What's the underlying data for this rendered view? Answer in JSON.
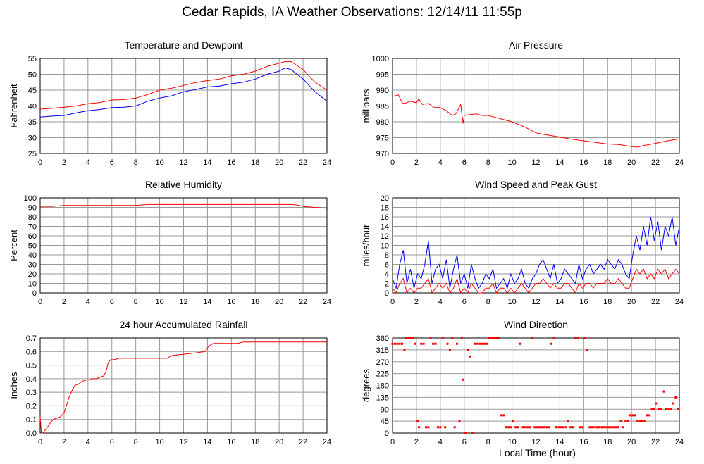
{
  "title": "Cedar Rapids, IA Weather Observations: 12/14/11 11:55p",
  "xlabel": "Local Time (hour)",
  "colors": {
    "red": "#ff0000",
    "blue": "#0000ff",
    "grid": "#999999",
    "frame": "#000000"
  },
  "chart_data": [
    {
      "id": "temp",
      "type": "line",
      "title": "Temperature and Dewpoint",
      "ylabel": "Fahrenheit",
      "xlim": [
        0,
        24
      ],
      "ylim": [
        25,
        55
      ],
      "xticks": [
        0,
        2,
        4,
        6,
        8,
        10,
        12,
        14,
        16,
        18,
        20,
        22,
        24
      ],
      "yticks": [
        25,
        30,
        35,
        40,
        45,
        50,
        55
      ],
      "series": [
        {
          "color": "#ff0000",
          "x": [
            0,
            1,
            2,
            3,
            4,
            5,
            6,
            7,
            8,
            9,
            10,
            11,
            12,
            13,
            14,
            15,
            16,
            17,
            18,
            19,
            20,
            20.5,
            21,
            22,
            23,
            24
          ],
          "values": [
            39,
            39.3,
            39.6,
            40,
            40.7,
            41.1,
            41.9,
            42,
            42.5,
            43.6,
            45,
            45.6,
            46.5,
            47.4,
            48,
            48.5,
            49.5,
            50,
            51,
            52.5,
            53.5,
            54,
            54,
            51.5,
            47.5,
            45
          ]
        },
        {
          "color": "#0000ff",
          "x": [
            0,
            1,
            2,
            3,
            4,
            5,
            6,
            7,
            8,
            9,
            10,
            11,
            12,
            13,
            14,
            15,
            16,
            17,
            18,
            19,
            20,
            20.5,
            21,
            22,
            23,
            24
          ],
          "values": [
            36.5,
            36.8,
            37,
            37.8,
            38.5,
            38.9,
            39.5,
            39.6,
            40,
            41.5,
            42.5,
            43.2,
            44.5,
            45.2,
            46,
            46.3,
            47,
            47.5,
            48.5,
            50,
            51,
            52,
            51.5,
            48.5,
            44.5,
            41.5
          ]
        }
      ]
    },
    {
      "id": "pressure",
      "type": "line",
      "title": "Air Pressure",
      "ylabel": "millibars",
      "xlim": [
        0,
        24
      ],
      "ylim": [
        970,
        1000
      ],
      "xticks": [
        0,
        2,
        4,
        6,
        8,
        10,
        12,
        14,
        16,
        18,
        20,
        22,
        24
      ],
      "yticks": [
        970,
        975,
        980,
        985,
        990,
        995,
        1000
      ],
      "series": [
        {
          "color": "#ff0000",
          "x": [
            0,
            0.5,
            0.8,
            1,
            1.5,
            2,
            2.2,
            2.5,
            3,
            3.5,
            4,
            4.5,
            5,
            5.3,
            5.7,
            5.9,
            6,
            6.5,
            7,
            7.5,
            8,
            8.5,
            9,
            10,
            11,
            12,
            13,
            14,
            15,
            16,
            17,
            18,
            19,
            20,
            20.5,
            21,
            22,
            23,
            24
          ],
          "values": [
            988,
            988.5,
            986,
            985.8,
            986.5,
            986,
            987.2,
            985.5,
            985.8,
            984.5,
            984.5,
            983.5,
            982,
            982.5,
            985.5,
            979.5,
            982,
            982.3,
            982.5,
            982,
            982,
            981.5,
            981,
            980,
            978.5,
            976.5,
            975.8,
            975.2,
            974.5,
            974,
            973.5,
            973,
            972.8,
            972.2,
            972,
            972.5,
            973.2,
            974,
            974.6
          ]
        }
      ]
    },
    {
      "id": "humidity",
      "type": "line",
      "title": "Relative Humidity",
      "ylabel": "Percent",
      "xlim": [
        0,
        24
      ],
      "ylim": [
        0,
        100
      ],
      "xticks": [
        0,
        2,
        4,
        6,
        8,
        10,
        12,
        14,
        16,
        18,
        20,
        22,
        24
      ],
      "yticks": [
        0,
        10,
        20,
        30,
        40,
        50,
        60,
        70,
        80,
        90,
        100
      ],
      "series": [
        {
          "color": "#ff0000",
          "x": [
            0,
            1,
            2,
            3,
            4,
            5,
            6,
            7,
            8,
            9,
            10,
            11,
            12,
            13,
            14,
            15,
            16,
            17,
            18,
            19,
            20,
            21,
            21.5,
            22,
            23,
            24
          ],
          "values": [
            91,
            91,
            92,
            92,
            92,
            92,
            92,
            92,
            92,
            93,
            93,
            93,
            93,
            93,
            93,
            93,
            93,
            93,
            93,
            93,
            93,
            93,
            92.5,
            91,
            90,
            89
          ]
        }
      ]
    },
    {
      "id": "wind",
      "type": "line",
      "title": "Wind Speed and Peak Gust",
      "ylabel": "miles/hour",
      "xlim": [
        0,
        24
      ],
      "ylim": [
        0,
        20
      ],
      "xticks": [
        0,
        2,
        4,
        6,
        8,
        10,
        12,
        14,
        16,
        18,
        20,
        22,
        24
      ],
      "yticks": [
        0,
        2,
        4,
        6,
        8,
        10,
        12,
        14,
        16,
        18,
        20
      ],
      "series": [
        {
          "color": "#0000ff",
          "x": [
            0,
            0.3,
            0.6,
            0.9,
            1.2,
            1.5,
            1.8,
            2.1,
            2.4,
            2.7,
            3,
            3.3,
            3.6,
            3.9,
            4.2,
            4.5,
            4.8,
            5.1,
            5.4,
            5.7,
            6,
            6.3,
            6.6,
            6.9,
            7.2,
            7.5,
            7.8,
            8.1,
            8.4,
            8.7,
            9,
            9.3,
            9.6,
            9.9,
            10.2,
            10.5,
            10.8,
            11.1,
            11.4,
            11.7,
            12,
            12.3,
            12.6,
            12.9,
            13.2,
            13.5,
            13.8,
            14.1,
            14.4,
            14.7,
            15,
            15.3,
            15.6,
            15.9,
            16.2,
            16.5,
            16.8,
            17.1,
            17.4,
            17.7,
            18,
            18.3,
            18.6,
            18.9,
            19.2,
            19.5,
            19.8,
            20.1,
            20.4,
            20.7,
            21,
            21.3,
            21.6,
            21.9,
            22.2,
            22.5,
            22.8,
            23.1,
            23.4,
            23.7,
            24
          ],
          "values": [
            3,
            1,
            6,
            9,
            2,
            5,
            1,
            4,
            3,
            6,
            11,
            2,
            5,
            6,
            3,
            7,
            1,
            5,
            8,
            2,
            4,
            1,
            6,
            3,
            1,
            2,
            4,
            3,
            5,
            1,
            2,
            3,
            1,
            4,
            2,
            3,
            5,
            2,
            1,
            3,
            4,
            6,
            7,
            5,
            3,
            6,
            2,
            3,
            5,
            4,
            3,
            2,
            6,
            3,
            5,
            6,
            4,
            5,
            6,
            5,
            7,
            6,
            5,
            7,
            6,
            4,
            3,
            8,
            12,
            9,
            14,
            10,
            16,
            11,
            15,
            9,
            14,
            12,
            16,
            10,
            14
          ]
        },
        {
          "color": "#ff0000",
          "x": [
            0,
            0.3,
            0.6,
            0.9,
            1.2,
            1.5,
            1.8,
            2.1,
            2.4,
            2.7,
            3,
            3.3,
            3.6,
            3.9,
            4.2,
            4.5,
            4.8,
            5.1,
            5.4,
            5.7,
            6,
            6.3,
            6.6,
            6.9,
            7.2,
            7.5,
            7.8,
            8.1,
            8.4,
            8.7,
            9,
            9.3,
            9.6,
            9.9,
            10.2,
            10.5,
            10.8,
            11.1,
            11.4,
            11.7,
            12,
            12.3,
            12.6,
            12.9,
            13.2,
            13.5,
            13.8,
            14.1,
            14.4,
            14.7,
            15,
            15.3,
            15.6,
            15.9,
            16.2,
            16.5,
            16.8,
            17.1,
            17.4,
            17.7,
            18,
            18.3,
            18.6,
            18.9,
            19.2,
            19.5,
            19.8,
            20.1,
            20.4,
            20.7,
            21,
            21.3,
            21.6,
            21.9,
            22.2,
            22.5,
            22.8,
            23.1,
            23.4,
            23.7,
            24
          ],
          "values": [
            1,
            0,
            2,
            3,
            0,
            1,
            0,
            1,
            1,
            2,
            3,
            0,
            1,
            2,
            1,
            2,
            0,
            1,
            3,
            0,
            1,
            0,
            2,
            1,
            0,
            0,
            1,
            1,
            2,
            0,
            1,
            1,
            0,
            1,
            0,
            1,
            2,
            1,
            0,
            1,
            2,
            2,
            3,
            2,
            1,
            2,
            1,
            1,
            2,
            2,
            1,
            0,
            2,
            1,
            2,
            2,
            1,
            2,
            2,
            2,
            3,
            2,
            2,
            3,
            2,
            1,
            1,
            3,
            5,
            4,
            5,
            3,
            4,
            3,
            5,
            4,
            5,
            3,
            4,
            5,
            4
          ]
        }
      ]
    },
    {
      "id": "rain",
      "type": "line",
      "title": "24 hour Accumulated Rainfall",
      "ylabel": "Inches",
      "xlim": [
        0,
        24
      ],
      "ylim": [
        0,
        0.7
      ],
      "xticks": [
        0,
        2,
        4,
        6,
        8,
        10,
        12,
        14,
        16,
        18,
        20,
        22,
        24
      ],
      "yticks": [
        0.0,
        0.1,
        0.2,
        0.3,
        0.4,
        0.5,
        0.6,
        0.7
      ],
      "ytick_labels": [
        "0.0",
        "0.1",
        "0.2",
        "0.3",
        "0.4",
        "0.5",
        "0.6",
        "0.7"
      ],
      "series": [
        {
          "color": "#ff0000",
          "x": [
            0,
            0.1,
            0.2,
            0.5,
            0.8,
            1.1,
            1.4,
            1.7,
            2,
            2.2,
            2.4,
            2.6,
            2.9,
            3.2,
            3.5,
            3.8,
            4.1,
            4.4,
            4.7,
            5,
            5.3,
            5.5,
            5.7,
            5.9,
            6.2,
            6.6,
            7,
            8,
            9,
            10,
            10.6,
            11,
            12,
            13,
            13.8,
            14.1,
            14.5,
            15,
            16,
            16.5,
            17,
            18,
            19,
            20,
            21,
            22,
            23,
            24
          ],
          "values": [
            0.12,
            0,
            0,
            0.03,
            0.07,
            0.1,
            0.11,
            0.12,
            0.15,
            0.2,
            0.26,
            0.3,
            0.35,
            0.36,
            0.38,
            0.39,
            0.39,
            0.4,
            0.4,
            0.41,
            0.42,
            0.45,
            0.52,
            0.54,
            0.54,
            0.55,
            0.55,
            0.55,
            0.55,
            0.55,
            0.55,
            0.57,
            0.58,
            0.59,
            0.6,
            0.64,
            0.66,
            0.66,
            0.66,
            0.66,
            0.67,
            0.67,
            0.67,
            0.67,
            0.67,
            0.67,
            0.67,
            0.67
          ]
        }
      ]
    },
    {
      "id": "direction",
      "type": "scatter",
      "title": "Wind Direction",
      "ylabel": "degrees",
      "xlim": [
        0,
        24
      ],
      "ylim": [
        0,
        360
      ],
      "xticks": [
        0,
        2,
        4,
        6,
        8,
        10,
        12,
        14,
        16,
        18,
        20,
        22,
        24
      ],
      "yticks": [
        0,
        45,
        90,
        135,
        180,
        225,
        270,
        315,
        360
      ],
      "series": [
        {
          "color": "#ff0000",
          "x": [
            0,
            0.2,
            0.4,
            0.6,
            0.8,
            1,
            1.1,
            1.3,
            1.5,
            1.7,
            1.9,
            2.1,
            2.2,
            2.4,
            2.6,
            2.8,
            3,
            3.2,
            3.4,
            3.6,
            3.8,
            4,
            4.2,
            4.4,
            4.6,
            4.8,
            5,
            5.2,
            5.4,
            5.6,
            5.8,
            5.9,
            6.1,
            6.3,
            6.5,
            6.7,
            6.9,
            7.1,
            7.3,
            7.5,
            7.7,
            7.9,
            8.1,
            8.3,
            8.5,
            8.7,
            8.9,
            9.1,
            9.3,
            9.5,
            9.7,
            9.9,
            10.1,
            10.3,
            10.5,
            10.7,
            10.9,
            11.1,
            11.3,
            11.5,
            11.7,
            11.9,
            12.1,
            12.3,
            12.5,
            12.7,
            12.9,
            13.1,
            13.3,
            13.5,
            13.7,
            13.9,
            14.1,
            14.3,
            14.5,
            14.7,
            14.9,
            15.1,
            15.3,
            15.5,
            15.7,
            15.9,
            16.1,
            16.3,
            16.5,
            16.7,
            16.9,
            17.1,
            17.3,
            17.5,
            17.7,
            17.9,
            18.1,
            18.3,
            18.5,
            18.7,
            18.9,
            19.1,
            19.3,
            19.5,
            19.7,
            19.9,
            20.1,
            20.3,
            20.5,
            20.7,
            20.9,
            21.1,
            21.3,
            21.5,
            21.7,
            21.9,
            22.1,
            22.3,
            22.5,
            22.7,
            22.9,
            23.1,
            23.3,
            23.5,
            23.7,
            23.9
          ],
          "values": [
            338,
            338,
            338,
            338,
            338,
            315,
            360,
            360,
            360,
            360,
            338,
            45,
            22,
            338,
            338,
            22,
            22,
            360,
            338,
            338,
            22,
            22,
            360,
            22,
            338,
            315,
            360,
            22,
            338,
            45,
            360,
            202,
            0,
            315,
            290,
            0,
            338,
            338,
            338,
            338,
            338,
            338,
            360,
            360,
            360,
            360,
            360,
            67,
            67,
            22,
            22,
            22,
            45,
            22,
            22,
            338,
            22,
            22,
            22,
            22,
            360,
            22,
            22,
            22,
            22,
            22,
            22,
            22,
            338,
            360,
            22,
            22,
            22,
            22,
            22,
            45,
            22,
            22,
            360,
            360,
            22,
            22,
            360,
            315,
            22,
            22,
            22,
            22,
            22,
            22,
            22,
            22,
            22,
            22,
            22,
            22,
            22,
            45,
            22,
            45,
            45,
            67,
            67,
            67,
            45,
            45,
            45,
            45,
            67,
            67,
            90,
            90,
            112,
            90,
            90,
            157,
            90,
            90,
            90,
            112,
            135,
            90
          ]
        }
      ]
    }
  ]
}
